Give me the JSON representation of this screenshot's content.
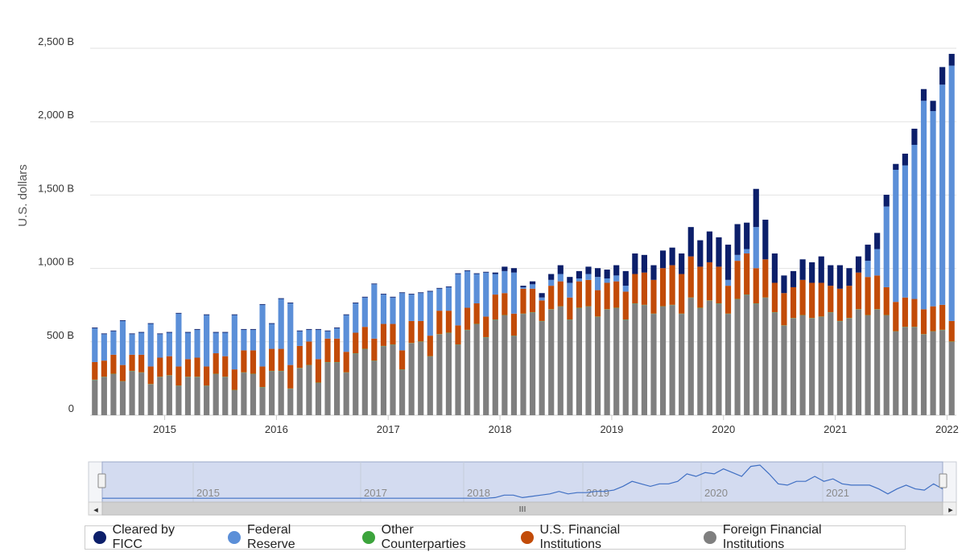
{
  "chart_data": {
    "type": "bar",
    "stacked": true,
    "title": "",
    "xlabel": "",
    "ylabel": "U.S. dollars",
    "ylim": [
      0,
      2500
    ],
    "y_ticks": [
      {
        "value": 0,
        "label": "0"
      },
      {
        "value": 500,
        "label": "500 B"
      },
      {
        "value": 1000,
        "label": "1,000 B"
      },
      {
        "value": 1500,
        "label": "1,500 B"
      },
      {
        "value": 2000,
        "label": "2,000 B"
      },
      {
        "value": 2500,
        "label": "2,500 B"
      }
    ],
    "x_ticks": [
      {
        "index": 8,
        "label": "2015"
      },
      {
        "index": 20,
        "label": "2016"
      },
      {
        "index": 32,
        "label": "2017"
      },
      {
        "index": 44,
        "label": "2018"
      },
      {
        "index": 56,
        "label": "2019"
      },
      {
        "index": 68,
        "label": "2020"
      },
      {
        "index": 80,
        "label": "2021"
      },
      {
        "index": 92,
        "label": "2022"
      }
    ],
    "categories_start": "2014-04",
    "categories_end": "2022-01",
    "series": [
      {
        "name": "Foreign Financial Institutions",
        "color": "#7f7f7f",
        "values": [
          240,
          260,
          280,
          230,
          300,
          290,
          210,
          260,
          270,
          200,
          260,
          260,
          200,
          280,
          260,
          170,
          290,
          280,
          190,
          300,
          300,
          180,
          320,
          340,
          220,
          360,
          360,
          290,
          420,
          450,
          370,
          470,
          480,
          310,
          490,
          500,
          400,
          550,
          560,
          480,
          580,
          620,
          530,
          650,
          680,
          540,
          690,
          700,
          640,
          720,
          740,
          650,
          730,
          740,
          670,
          720,
          730,
          650,
          760,
          750,
          690,
          740,
          750,
          690,
          800,
          730,
          780,
          760,
          690,
          790,
          820,
          760,
          800,
          700,
          610,
          660,
          680,
          660,
          670,
          700,
          640,
          660,
          720,
          680,
          720,
          680,
          570,
          600,
          600,
          550,
          570,
          580,
          500
        ]
      },
      {
        "name": "Other Counterparties",
        "color": "#3ca43c",
        "values": [
          2,
          2,
          2,
          2,
          2,
          2,
          2,
          2,
          2,
          2,
          2,
          2,
          2,
          2,
          2,
          2,
          2,
          2,
          2,
          2,
          2,
          2,
          2,
          2,
          2,
          2,
          2,
          2,
          2,
          2,
          2,
          2,
          2,
          2,
          2,
          2,
          2,
          2,
          2,
          2,
          2,
          2,
          2,
          2,
          2,
          2,
          2,
          2,
          2,
          2,
          2,
          2,
          2,
          2,
          2,
          2,
          2,
          2,
          2,
          2,
          2,
          2,
          2,
          2,
          2,
          2,
          2,
          2,
          2,
          2,
          2,
          2,
          2,
          2,
          2,
          2,
          2,
          2,
          2,
          2,
          2,
          2,
          2,
          2,
          2,
          2,
          2,
          2,
          2,
          2,
          2,
          2,
          2
        ]
      },
      {
        "name": "U.S. Financial Institutions",
        "color": "#c24b08",
        "values": [
          120,
          110,
          130,
          110,
          110,
          120,
          120,
          130,
          130,
          130,
          120,
          130,
          130,
          140,
          140,
          140,
          150,
          160,
          140,
          150,
          150,
          160,
          150,
          160,
          160,
          160,
          160,
          140,
          140,
          150,
          150,
          150,
          140,
          130,
          150,
          140,
          140,
          160,
          150,
          130,
          150,
          140,
          140,
          170,
          150,
          150,
          170,
          160,
          140,
          160,
          170,
          150,
          180,
          180,
          180,
          180,
          180,
          190,
          200,
          220,
          230,
          260,
          270,
          270,
          280,
          280,
          260,
          250,
          190,
          260,
          280,
          240,
          260,
          200,
          220,
          210,
          240,
          240,
          230,
          180,
          220,
          220,
          250,
          260,
          230,
          190,
          200,
          200,
          190,
          170,
          170,
          170,
          140
        ]
      },
      {
        "name": "Federal Reserve",
        "color": "#5b8fd8",
        "values": [
          230,
          180,
          160,
          300,
          140,
          150,
          290,
          160,
          160,
          360,
          180,
          190,
          350,
          140,
          160,
          370,
          140,
          140,
          420,
          170,
          340,
          420,
          100,
          80,
          200,
          50,
          70,
          250,
          200,
          200,
          370,
          200,
          180,
          390,
          180,
          190,
          300,
          150,
          160,
          350,
          250,
          200,
          300,
          140,
          150,
          280,
          10,
          30,
          20,
          40,
          50,
          100,
          20,
          40,
          90,
          30,
          40,
          40,
          0,
          0,
          0,
          0,
          0,
          0,
          0,
          0,
          0,
          0,
          40,
          40,
          30,
          280,
          0,
          0,
          0,
          0,
          0,
          0,
          0,
          0,
          0,
          0,
          0,
          110,
          180,
          550,
          900,
          900,
          1050,
          1420,
          1330,
          1500,
          1740
        ]
      },
      {
        "name": "Cleared by FICC",
        "color": "#0c1f6a",
        "values": [
          5,
          5,
          5,
          5,
          5,
          5,
          5,
          5,
          5,
          5,
          5,
          5,
          5,
          5,
          5,
          5,
          5,
          5,
          5,
          5,
          5,
          5,
          5,
          5,
          5,
          5,
          5,
          5,
          5,
          5,
          5,
          5,
          5,
          5,
          5,
          5,
          5,
          5,
          5,
          5,
          5,
          5,
          5,
          10,
          30,
          30,
          10,
          20,
          30,
          40,
          60,
          40,
          50,
          50,
          60,
          60,
          70,
          100,
          140,
          120,
          100,
          120,
          120,
          140,
          200,
          180,
          210,
          200,
          240,
          210,
          180,
          260,
          270,
          200,
          120,
          110,
          140,
          140,
          180,
          140,
          160,
          120,
          110,
          110,
          110,
          80,
          40,
          80,
          110,
          80,
          70,
          120,
          80
        ]
      }
    ]
  },
  "legend": {
    "items": [
      {
        "label": "Cleared by FICC",
        "color": "#0c1f6a"
      },
      {
        "label": "Federal Reserve",
        "color": "#5b8fd8"
      },
      {
        "label": "Other Counterparties",
        "color": "#3ca43c"
      },
      {
        "label": "U.S. Financial Institutions",
        "color": "#c24b08"
      },
      {
        "label": "Foreign Financial Institutions",
        "color": "#7f7f7f"
      }
    ]
  },
  "navigator": {
    "ticks": [
      "2015",
      "2017",
      "2018",
      "2019",
      "2020",
      "2021"
    ],
    "handle_glyph": "III",
    "left_arrow": "◂",
    "right_arrow": "▸"
  }
}
